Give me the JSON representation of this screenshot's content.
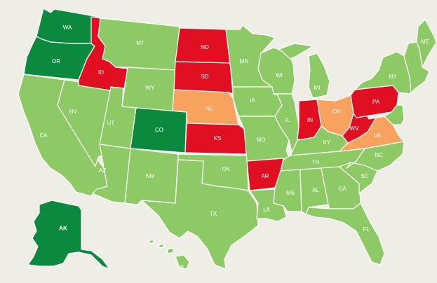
{
  "colors": {
    "background": "#efeee6",
    "light_green": "#8dc964",
    "dark_green": "#0b8a3f",
    "red": "#e10f22",
    "orange": "#f8a25f"
  },
  "states": {
    "WA": {
      "label": "WA",
      "category": "dark_green"
    },
    "OR": {
      "label": "OR",
      "category": "dark_green"
    },
    "CA": {
      "label": "CA",
      "category": "light_green"
    },
    "NV": {
      "label": "NV",
      "category": "light_green"
    },
    "ID": {
      "label": "ID",
      "category": "red"
    },
    "MT": {
      "label": "MT",
      "category": "light_green"
    },
    "WY": {
      "label": "WY",
      "category": "light_green"
    },
    "UT": {
      "label": "UT",
      "category": "light_green"
    },
    "AZ": {
      "label": "AZ",
      "category": "light_green"
    },
    "CO": {
      "label": "CO",
      "category": "dark_green"
    },
    "NM": {
      "label": "NM",
      "category": "light_green"
    },
    "ND": {
      "label": "ND",
      "category": "red"
    },
    "SD": {
      "label": "SD",
      "category": "red"
    },
    "NE": {
      "label": "NE",
      "category": "orange"
    },
    "KS": {
      "label": "KS",
      "category": "red"
    },
    "OK": {
      "label": "OK",
      "category": "light_green"
    },
    "TX": {
      "label": "TX",
      "category": "light_green"
    },
    "MN": {
      "label": "MN",
      "category": "light_green"
    },
    "IA": {
      "label": "IA",
      "category": "light_green"
    },
    "MO": {
      "label": "MO",
      "category": "light_green"
    },
    "AR": {
      "label": "AR",
      "category": "red"
    },
    "LA": {
      "label": "LA",
      "category": "light_green"
    },
    "WI": {
      "label": "WI",
      "category": "light_green"
    },
    "IL": {
      "label": "IL",
      "category": "light_green"
    },
    "MI": {
      "label": "MI",
      "category": "light_green"
    },
    "IN": {
      "label": "IN",
      "category": "red"
    },
    "OH": {
      "label": "OH",
      "category": "orange"
    },
    "KY": {
      "label": "KY",
      "category": "light_green"
    },
    "TN": {
      "label": "TN",
      "category": "light_green"
    },
    "MS": {
      "label": "MS",
      "category": "light_green"
    },
    "AL": {
      "label": "AL",
      "category": "light_green"
    },
    "GA": {
      "label": "GA",
      "category": "light_green"
    },
    "FL": {
      "label": "FL",
      "category": "light_green"
    },
    "SC": {
      "label": "SC",
      "category": "light_green"
    },
    "NC": {
      "label": "NC",
      "category": "light_green"
    },
    "VA": {
      "label": "VA",
      "category": "orange"
    },
    "WV": {
      "label": "WV",
      "category": "red"
    },
    "PA": {
      "label": "PA",
      "category": "red"
    },
    "NY": {
      "label": "NY",
      "category": "light_green"
    },
    "ME": {
      "label": "ME",
      "category": "light_green"
    },
    "NE_STATES": {
      "label": "",
      "category": "light_green"
    },
    "MIDATL": {
      "label": "",
      "category": "light_green"
    },
    "AK": {
      "label": "AK",
      "category": "dark_green"
    },
    "HI": {
      "label": "HI",
      "category": "light_green"
    }
  }
}
